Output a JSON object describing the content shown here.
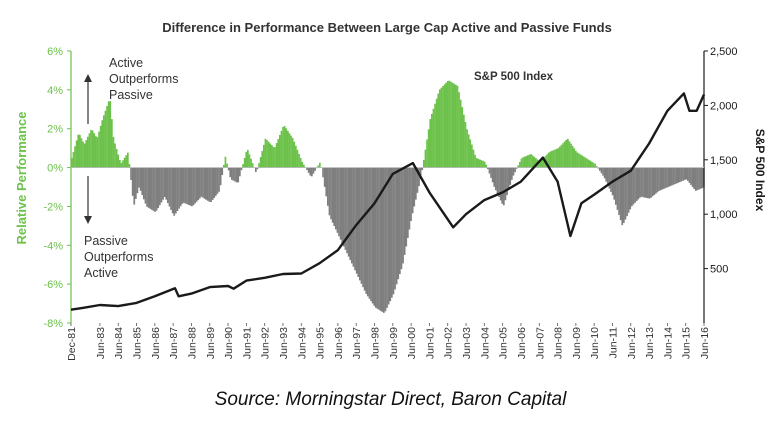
{
  "chart_data": {
    "type": "area",
    "title": "Difference in Performance Between Large Cap Active and Passive Funds",
    "ylabel": "Relative Performance",
    "y2label": "S&P 500 Index",
    "ylim": [
      -8,
      6
    ],
    "y2lim": [
      0,
      2500
    ],
    "yticks": [
      -8,
      -6,
      -4,
      -2,
      0,
      2,
      4,
      6
    ],
    "ytick_labels": [
      "-8%",
      "-6%",
      "-4%",
      "-2%",
      "0%",
      "2%",
      "4%",
      "6%"
    ],
    "y2ticks": [
      500,
      1000,
      1500,
      2000,
      2500
    ],
    "y2tick_labels": [
      "500",
      "1,000",
      "1,500",
      "2,000",
      "2,500"
    ],
    "xlim": [
      1981.92,
      2016.5
    ],
    "xticks": [
      1981.92,
      1983.5,
      1984.5,
      1985.5,
      1986.5,
      1987.5,
      1988.5,
      1989.5,
      1990.5,
      1991.5,
      1992.5,
      1993.5,
      1994.5,
      1995.5,
      1996.5,
      1997.5,
      1998.5,
      1999.5,
      2000.5,
      2001.5,
      2002.5,
      2003.5,
      2004.5,
      2005.5,
      2006.5,
      2007.5,
      2008.5,
      2009.5,
      2010.5,
      2011.5,
      2012.5,
      2013.5,
      2014.5,
      2015.5,
      2016.5
    ],
    "xtick_labels": [
      "Dec-81",
      "Jun-83",
      "Jun-84",
      "Jun-85",
      "Jun-86",
      "Jun-87",
      "Jun-88",
      "Jun-89",
      "Jun-90",
      "Jun-91",
      "Jun-92",
      "Jun-93",
      "Jun-94",
      "Jun-95",
      "Jun-96",
      "Jun-97",
      "Jun-98",
      "Jun-99",
      "Jun-00",
      "Jun-01",
      "Jun-02",
      "Jun-03",
      "Jun-04",
      "Jun-05",
      "Jun-06",
      "Jun-07",
      "Jun-08",
      "Jun-09",
      "Jun-10",
      "Jun-11",
      "Jun-12",
      "Jun-13",
      "Jun-14",
      "Jun-15",
      "Jun-16"
    ],
    "series": [
      {
        "name": "Relative Performance",
        "color_positive": "#6cc24a",
        "color_negative": "#7f7f7f",
        "x": [
          1981.92,
          1982.3,
          1982.6,
          1983.0,
          1983.3,
          1983.6,
          1984.0,
          1984.2,
          1984.6,
          1985.0,
          1985.3,
          1985.6,
          1986.0,
          1986.5,
          1987.0,
          1987.5,
          1988.0,
          1988.5,
          1989.0,
          1989.5,
          1990.0,
          1990.3,
          1990.6,
          1991.0,
          1991.5,
          1992.0,
          1992.5,
          1993.0,
          1993.5,
          1994.0,
          1994.5,
          1995.0,
          1995.5,
          1996.0,
          1996.5,
          1997.0,
          1997.5,
          1998.0,
          1998.5,
          1999.0,
          1999.5,
          2000.0,
          2000.5,
          2001.0,
          2001.5,
          2002.0,
          2002.5,
          2003.0,
          2003.5,
          2004.0,
          2004.5,
          2005.0,
          2005.5,
          2006.0,
          2006.5,
          2007.0,
          2007.5,
          2008.0,
          2008.5,
          2009.0,
          2009.5,
          2010.0,
          2010.5,
          2011.0,
          2011.5,
          2012.0,
          2012.5,
          2013.0,
          2013.5,
          2014.0,
          2014.5,
          2015.0,
          2015.5,
          2016.0,
          2016.5
        ],
        "values": [
          0.5,
          1.8,
          1.2,
          2.0,
          1.5,
          2.5,
          3.6,
          1.5,
          0.2,
          0.8,
          -2.0,
          -1.0,
          -2.0,
          -2.3,
          -1.5,
          -2.5,
          -1.8,
          -2.0,
          -1.5,
          -1.8,
          -1.2,
          0.6,
          -0.6,
          -0.8,
          1.0,
          -0.3,
          1.5,
          1.0,
          2.2,
          1.5,
          0.3,
          -0.5,
          0.3,
          -2.5,
          -3.5,
          -4.5,
          -5.5,
          -6.5,
          -7.2,
          -7.5,
          -6.5,
          -5.0,
          -2.5,
          -0.5,
          2.5,
          4.0,
          4.5,
          4.2,
          2.0,
          0.5,
          0.3,
          -1.0,
          -2.0,
          -0.5,
          0.5,
          0.7,
          0.3,
          0.8,
          1.0,
          1.5,
          0.8,
          0.5,
          0.2,
          -0.5,
          -1.5,
          -3.0,
          -2.0,
          -1.5,
          -1.6,
          -1.2,
          -1.0,
          -0.8,
          -0.6,
          -1.2,
          -1.0
        ]
      },
      {
        "name": "S&P 500 Index",
        "axis": "right",
        "color": "#1a1a1a",
        "x": [
          1981.92,
          1982.6,
          1983.5,
          1984.5,
          1985.5,
          1986.5,
          1987.6,
          1987.8,
          1988.5,
          1989.5,
          1990.5,
          1990.8,
          1991.5,
          1992.5,
          1993.5,
          1994.5,
          1995.5,
          1996.5,
          1997.5,
          1998.5,
          1999.5,
          2000.6,
          2001.5,
          2002.8,
          2003.5,
          2004.5,
          2005.5,
          2006.5,
          2007.7,
          2008.5,
          2009.2,
          2009.8,
          2010.5,
          2011.5,
          2012.5,
          2013.5,
          2014.5,
          2015.4,
          2015.7,
          2016.1,
          2016.5
        ],
        "values": [
          122,
          140,
          165,
          155,
          185,
          245,
          320,
          245,
          270,
          330,
          340,
          315,
          390,
          415,
          450,
          455,
          550,
          670,
          900,
          1100,
          1370,
          1470,
          1200,
          880,
          1000,
          1130,
          1200,
          1300,
          1520,
          1300,
          800,
          1100,
          1180,
          1300,
          1400,
          1650,
          1950,
          2110,
          1950,
          1950,
          2100
        ]
      }
    ],
    "annotations": [
      {
        "text": "Active Outperforms Passive",
        "lines": [
          "Active",
          "Outperforms",
          "Passive"
        ]
      },
      {
        "text": "Passive Outperforms Active",
        "lines": [
          "Passive",
          "Outperforms",
          "Active"
        ]
      },
      {
        "text": "S&P 500 Index"
      }
    ],
    "colors": {
      "left_axis": "#6cc24a",
      "right_axis": "#1a1a1a",
      "title": "#333333"
    }
  },
  "source": "Source: Morningstar Direct, Baron Capital"
}
